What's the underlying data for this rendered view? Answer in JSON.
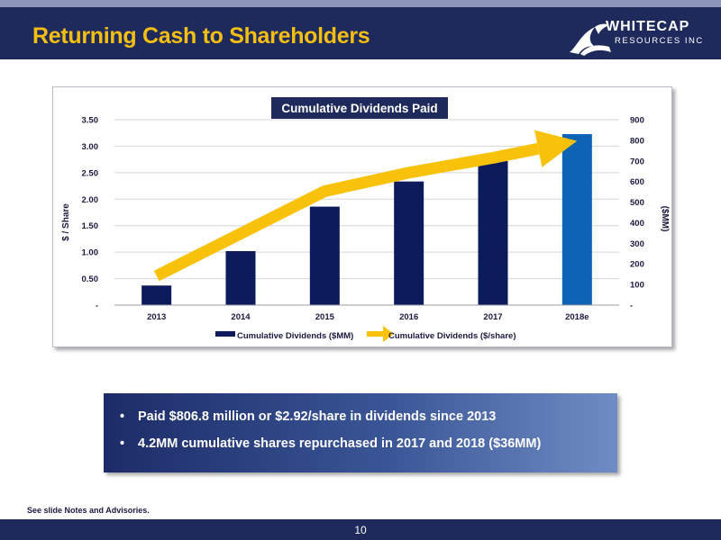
{
  "header": {
    "title": "Returning Cash to Shareholders",
    "logo_word": "WHITECAP",
    "logo_sub": "RESOURCES INC"
  },
  "chart_data": {
    "type": "bar",
    "title": "Cumulative Dividends Paid",
    "categories": [
      "2013",
      "2014",
      "2015",
      "2016",
      "2017",
      "2018e"
    ],
    "series": [
      {
        "name": "Cumulative Dividends ($MM)",
        "kind": "bar",
        "axis": "right",
        "values": [
          95,
          262,
          478,
          600,
          700,
          830
        ],
        "colors": [
          "#0d1a5b",
          "#0d1a5b",
          "#0d1a5b",
          "#0d1a5b",
          "#0d1a5b",
          "#0d63b4"
        ]
      },
      {
        "name": "Cumulative Dividends ($/share)",
        "kind": "arrow-line",
        "axis": "left",
        "values": [
          0.55,
          1.35,
          2.15,
          2.5,
          2.78,
          3.1
        ],
        "color": "#f8c20a"
      }
    ],
    "y_left": {
      "label": "$ / Share",
      "min": 0,
      "max": 3.5,
      "ticks": [
        "-",
        "0.50",
        "1.00",
        "1.50",
        "2.00",
        "2.50",
        "3.00",
        "3.50"
      ]
    },
    "y_right": {
      "label": "($MM)",
      "min": 0,
      "max": 900,
      "ticks": [
        "-",
        "100",
        "200",
        "300",
        "400",
        "500",
        "600",
        "700",
        "800",
        "900"
      ]
    },
    "grid": true,
    "legend_position": "bottom"
  },
  "bullets": [
    "Paid $806.8 million or $2.92/share in dividends since 2013",
    "4.2MM cumulative shares repurchased in 2017 and 2018 ($36MM)"
  ],
  "bullet_symbol": "•",
  "notes": "See slide Notes and Advisories.",
  "page_number": "10"
}
